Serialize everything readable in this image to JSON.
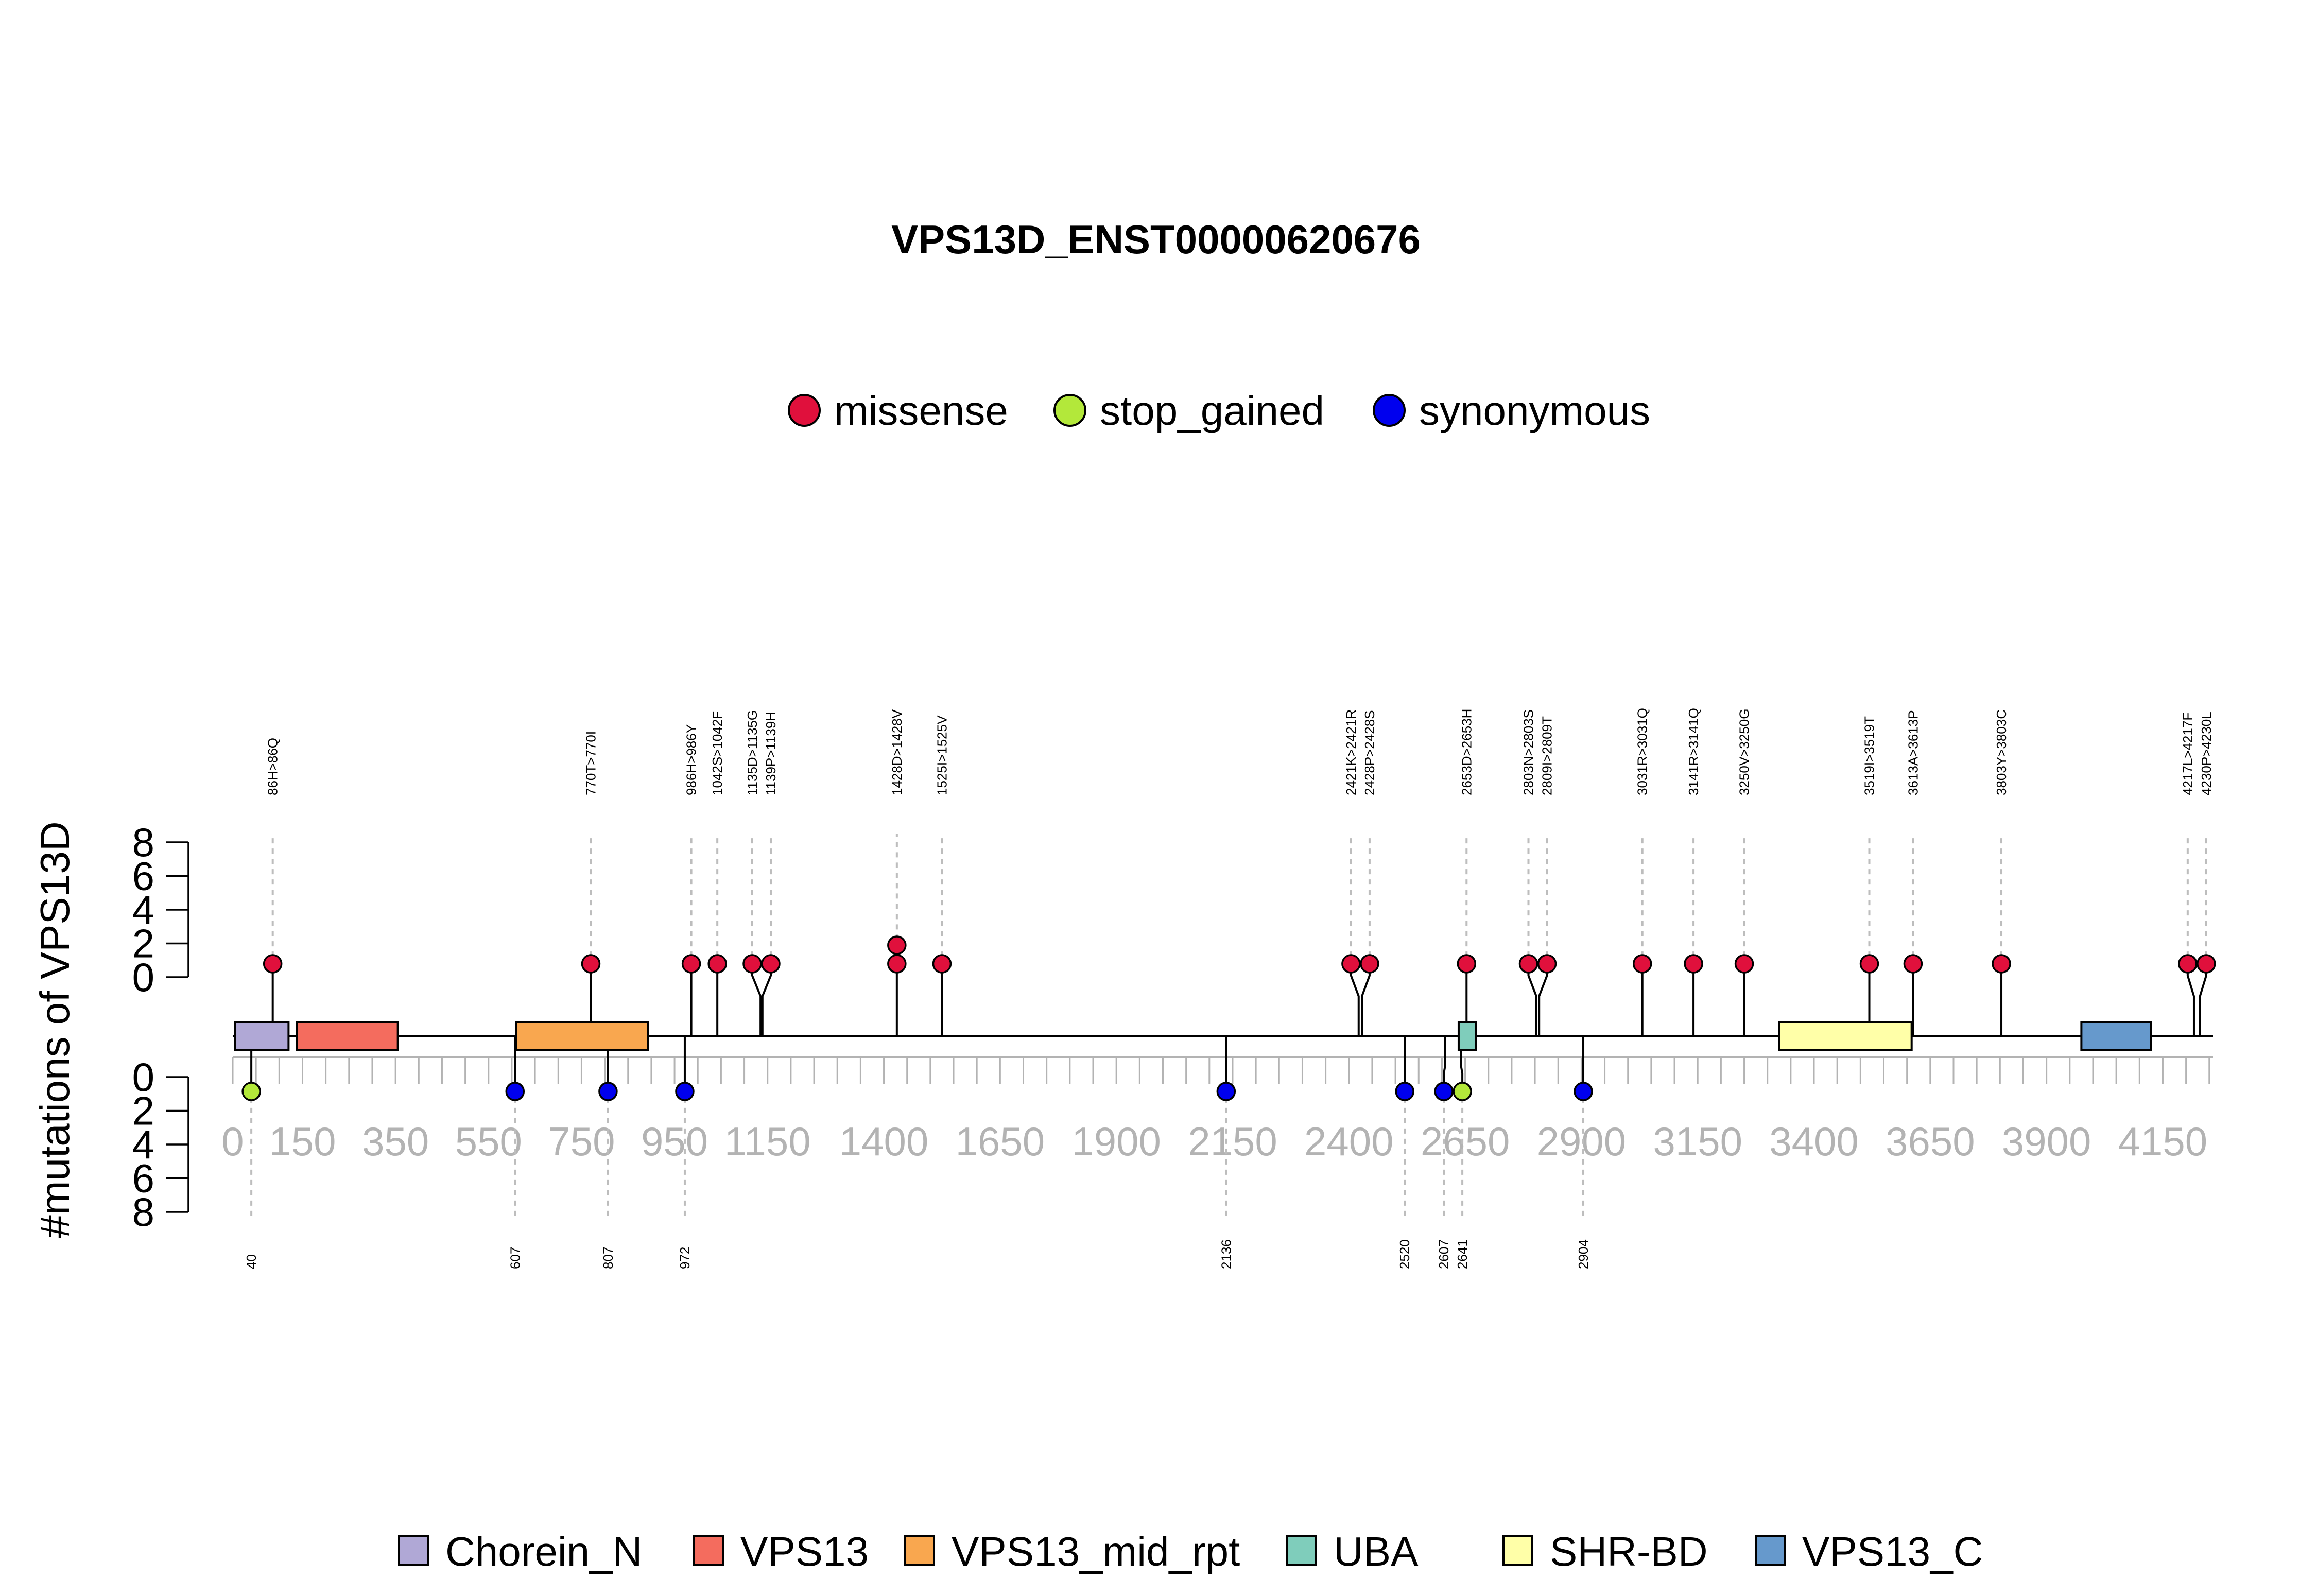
{
  "chart_data": {
    "type": "lollipop",
    "title": "VPS13D_ENST00000620676",
    "ylabel": "#mutations of VPS13D",
    "protein_length": 4258,
    "xlim": [
      0,
      4258
    ],
    "x_ticks": [
      0,
      150,
      350,
      550,
      750,
      950,
      1150,
      1400,
      1650,
      1900,
      2150,
      2400,
      2650,
      2900,
      3150,
      3400,
      3650,
      3900,
      4150
    ],
    "x_tick_labels": [
      "0",
      "150",
      "350",
      "550",
      "750",
      "950",
      "1150",
      "1400",
      "1650",
      "1900",
      "2150",
      "2400",
      "2650",
      "2900",
      "3150",
      "3400",
      "3650",
      "3900",
      "4150"
    ],
    "y_ticks": [
      0,
      2,
      4,
      6,
      8
    ],
    "y_tick_labels": [
      "0",
      "2",
      "4",
      "6",
      "8"
    ],
    "mutation_types": [
      {
        "name": "missense",
        "color": "#e0103c"
      },
      {
        "name": "stop_gained",
        "color": "#b3e83a"
      },
      {
        "name": "synonymous",
        "color": "#0000ee"
      }
    ],
    "domains": [
      {
        "name": "Chorein_N",
        "start": 5,
        "end": 120,
        "color": "#b0a8d6"
      },
      {
        "name": "VPS13",
        "start": 138,
        "end": 355,
        "color": "#f46c5e"
      },
      {
        "name": "VPS13_mid_rpt",
        "start": 610,
        "end": 893,
        "color": "#f9a74f"
      },
      {
        "name": "UBA",
        "start": 2636,
        "end": 2673,
        "color": "#7fcdbb"
      },
      {
        "name": "SHR-BD",
        "start": 3325,
        "end": 3610,
        "color": "#ffffa8"
      },
      {
        "name": "VPS13_C",
        "start": 3975,
        "end": 4125,
        "color": "#6699cc"
      }
    ],
    "upper_mutations": [
      {
        "position": 86,
        "label": "86H>86Q",
        "type": "missense",
        "count": 1
      },
      {
        "position": 770,
        "label": "770T>770I",
        "type": "missense",
        "count": 1
      },
      {
        "position": 986,
        "label": "986H>986Y",
        "type": "missense",
        "count": 1
      },
      {
        "position": 1042,
        "label": "1042S>1042F",
        "type": "missense",
        "count": 1
      },
      {
        "position": 1135,
        "label": "1135D>1135G",
        "type": "missense",
        "count": 1
      },
      {
        "position": 1139,
        "label": "1139P>1139H",
        "type": "missense",
        "count": 1
      },
      {
        "position": 1428,
        "label": "1428D>1428V",
        "type": "missense",
        "count": 2
      },
      {
        "position": 1525,
        "label": "1525I>1525V",
        "type": "missense",
        "count": 1
      },
      {
        "position": 2421,
        "label": "2421K>2421R",
        "type": "missense",
        "count": 1
      },
      {
        "position": 2428,
        "label": "2428P>2428S",
        "type": "missense",
        "count": 1
      },
      {
        "position": 2653,
        "label": "2653D>2653H",
        "type": "missense",
        "count": 1
      },
      {
        "position": 2803,
        "label": "2803N>2803S",
        "type": "missense",
        "count": 1
      },
      {
        "position": 2809,
        "label": "2809I>2809T",
        "type": "missense",
        "count": 1
      },
      {
        "position": 3031,
        "label": "3031R>3031Q",
        "type": "missense",
        "count": 1
      },
      {
        "position": 3141,
        "label": "3141R>3141Q",
        "type": "missense",
        "count": 1
      },
      {
        "position": 3250,
        "label": "3250V>3250G",
        "type": "missense",
        "count": 1
      },
      {
        "position": 3519,
        "label": "3519I>3519T",
        "type": "missense",
        "count": 1
      },
      {
        "position": 3613,
        "label": "3613A>3613P",
        "type": "missense",
        "count": 1
      },
      {
        "position": 3803,
        "label": "3803Y>3803C",
        "type": "missense",
        "count": 1
      },
      {
        "position": 4217,
        "label": "4217L>4217F",
        "type": "missense",
        "count": 1
      },
      {
        "position": 4230,
        "label": "4230P>4230L",
        "type": "missense",
        "count": 1
      }
    ],
    "lower_mutations": [
      {
        "position": 40,
        "label": "40",
        "type": "stop_gained",
        "count": 1
      },
      {
        "position": 607,
        "label": "607",
        "type": "synonymous",
        "count": 1
      },
      {
        "position": 807,
        "label": "807",
        "type": "synonymous",
        "count": 1
      },
      {
        "position": 972,
        "label": "972",
        "type": "synonymous",
        "count": 1
      },
      {
        "position": 2136,
        "label": "2136",
        "type": "synonymous",
        "count": 1
      },
      {
        "position": 2520,
        "label": "2520",
        "type": "synonymous",
        "count": 1
      },
      {
        "position": 2607,
        "label": "2607",
        "type": "synonymous",
        "count": 1
      },
      {
        "position": 2641,
        "label": "2641",
        "type": "stop_gained",
        "count": 1
      },
      {
        "position": 2904,
        "label": "2904",
        "type": "synonymous",
        "count": 1
      }
    ]
  }
}
